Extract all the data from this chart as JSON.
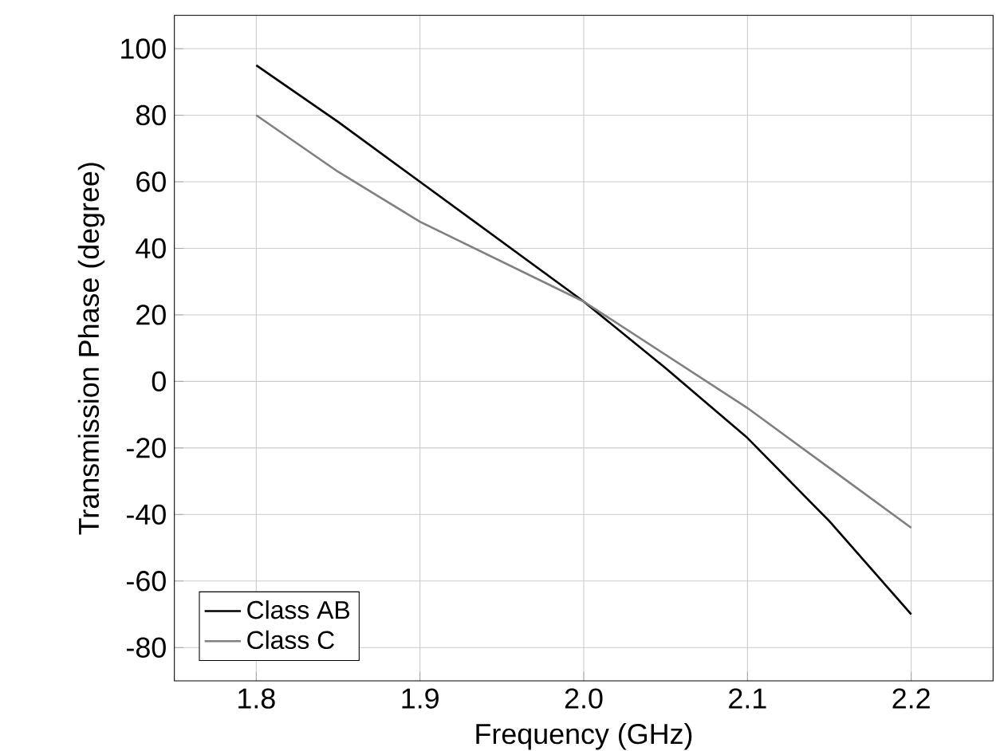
{
  "chart_data": {
    "type": "line",
    "xlabel": "Frequency (GHz)",
    "ylabel": "Transmission Phase (degree)",
    "xlim": [
      1.75,
      2.25
    ],
    "ylim": [
      -90,
      110
    ],
    "xticks": [
      {
        "value": 1.8,
        "label": "1.8"
      },
      {
        "value": 1.9,
        "label": "1.9"
      },
      {
        "value": 2.0,
        "label": "2.0"
      },
      {
        "value": 2.1,
        "label": "2.1"
      },
      {
        "value": 2.2,
        "label": "2.2"
      }
    ],
    "yticks": [
      -80,
      -60,
      -40,
      -20,
      0,
      20,
      40,
      60,
      80,
      100
    ],
    "grid": true,
    "legend": "bottom left",
    "line_style": "solid",
    "marker": "none",
    "series": [
      {
        "name": "Class AB",
        "color": "#000000",
        "x": [
          1.8,
          1.85,
          1.9,
          1.95,
          2.0,
          2.05,
          2.1,
          2.15,
          2.2
        ],
        "values": [
          95,
          78,
          60,
          42,
          24,
          4,
          -17,
          -42,
          -70
        ]
      },
      {
        "name": "Class C",
        "color": "#808080",
        "x": [
          1.8,
          1.85,
          1.9,
          1.95,
          2.0,
          2.05,
          2.1,
          2.15,
          2.2
        ],
        "values": [
          80,
          63,
          48,
          36,
          24,
          8,
          -8,
          -26,
          -44
        ]
      }
    ]
  }
}
